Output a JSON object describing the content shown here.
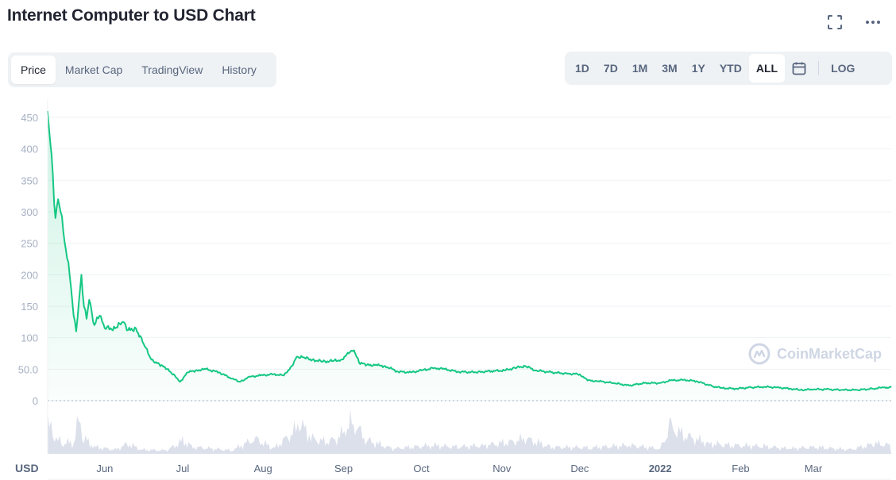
{
  "header": {
    "title": "Internet Computer to USD Chart"
  },
  "icons": {
    "fullscreen": "fullscreen-icon",
    "more": "more-dots-icon",
    "calendar": "calendar-icon"
  },
  "tabs": [
    {
      "label": "Price",
      "active": true
    },
    {
      "label": "Market Cap",
      "active": false
    },
    {
      "label": "TradingView",
      "active": false
    },
    {
      "label": "History",
      "active": false
    }
  ],
  "ranges": [
    {
      "label": "1D",
      "active": false
    },
    {
      "label": "7D",
      "active": false
    },
    {
      "label": "1M",
      "active": false
    },
    {
      "label": "3M",
      "active": false
    },
    {
      "label": "1Y",
      "active": false
    },
    {
      "label": "YTD",
      "active": false
    },
    {
      "label": "ALL",
      "active": true
    }
  ],
  "log_label": "LOG",
  "currency_label": "USD",
  "watermark": "CoinMarketCap",
  "colors": {
    "line": "#16c784",
    "volume": "#cfd6e4",
    "grid": "#eff2f5",
    "accent_bg": "#eff2f5"
  },
  "chart_data": {
    "type": "line",
    "title": "Internet Computer to USD Chart",
    "ylabel": "USD",
    "ylim": [
      0,
      460
    ],
    "y_ticks": [
      0,
      50.0,
      100,
      150,
      200,
      250,
      300,
      350,
      400,
      450
    ],
    "y_tick_labels": [
      "0",
      "50.0",
      "100",
      "150",
      "200",
      "250",
      "300",
      "350",
      "400",
      "450"
    ],
    "x_range": [
      "2021-05-10",
      "2022-03-31"
    ],
    "x_ticks": [
      {
        "label": "Jun",
        "date": "2021-06-01",
        "bold": false
      },
      {
        "label": "Jul",
        "date": "2021-07-01",
        "bold": false
      },
      {
        "label": "Aug",
        "date": "2021-08-01",
        "bold": false
      },
      {
        "label": "Sep",
        "date": "2021-09-01",
        "bold": false
      },
      {
        "label": "Oct",
        "date": "2021-10-01",
        "bold": false
      },
      {
        "label": "Nov",
        "date": "2021-11-01",
        "bold": false
      },
      {
        "label": "Dec",
        "date": "2021-12-01",
        "bold": false
      },
      {
        "label": "2022",
        "date": "2022-01-01",
        "bold": true
      },
      {
        "label": "Feb",
        "date": "2022-02-01",
        "bold": false
      },
      {
        "label": "Mar",
        "date": "2022-03-01",
        "bold": false
      }
    ],
    "grid": true,
    "series": [
      {
        "points": [
          [
            "2021-05-10",
            460
          ],
          [
            "2021-05-11",
            410
          ],
          [
            "2021-05-12",
            360
          ],
          [
            "2021-05-13",
            290
          ],
          [
            "2021-05-14",
            320
          ],
          [
            "2021-05-15",
            300
          ],
          [
            "2021-05-16",
            270
          ],
          [
            "2021-05-17",
            240
          ],
          [
            "2021-05-18",
            220
          ],
          [
            "2021-05-19",
            180
          ],
          [
            "2021-05-20",
            135
          ],
          [
            "2021-05-21",
            110
          ],
          [
            "2021-05-22",
            155
          ],
          [
            "2021-05-23",
            200
          ],
          [
            "2021-05-24",
            150
          ],
          [
            "2021-05-25",
            130
          ],
          [
            "2021-05-26",
            160
          ],
          [
            "2021-05-27",
            140
          ],
          [
            "2021-05-28",
            120
          ],
          [
            "2021-05-30",
            135
          ],
          [
            "2021-06-01",
            115
          ],
          [
            "2021-06-05",
            115
          ],
          [
            "2021-06-08",
            125
          ],
          [
            "2021-06-10",
            112
          ],
          [
            "2021-06-13",
            115
          ],
          [
            "2021-06-16",
            90
          ],
          [
            "2021-06-19",
            65
          ],
          [
            "2021-06-22",
            58
          ],
          [
            "2021-06-25",
            50
          ],
          [
            "2021-06-28",
            40
          ],
          [
            "2021-06-30",
            30
          ],
          [
            "2021-07-03",
            45
          ],
          [
            "2021-07-06",
            48
          ],
          [
            "2021-07-10",
            50
          ],
          [
            "2021-07-15",
            45
          ],
          [
            "2021-07-20",
            35
          ],
          [
            "2021-07-23",
            30
          ],
          [
            "2021-07-27",
            38
          ],
          [
            "2021-07-31",
            40
          ],
          [
            "2021-08-05",
            42
          ],
          [
            "2021-08-09",
            40
          ],
          [
            "2021-08-12",
            55
          ],
          [
            "2021-08-14",
            70
          ],
          [
            "2021-08-17",
            68
          ],
          [
            "2021-08-20",
            65
          ],
          [
            "2021-08-24",
            62
          ],
          [
            "2021-08-28",
            63
          ],
          [
            "2021-08-31",
            65
          ],
          [
            "2021-09-03",
            75
          ],
          [
            "2021-09-05",
            80
          ],
          [
            "2021-09-07",
            60
          ],
          [
            "2021-09-10",
            57
          ],
          [
            "2021-09-14",
            56
          ],
          [
            "2021-09-17",
            55
          ],
          [
            "2021-09-22",
            46
          ],
          [
            "2021-09-27",
            45
          ],
          [
            "2021-10-01",
            48
          ],
          [
            "2021-10-06",
            52
          ],
          [
            "2021-10-10",
            50
          ],
          [
            "2021-10-15",
            46
          ],
          [
            "2021-10-22",
            45
          ],
          [
            "2021-10-28",
            47
          ],
          [
            "2021-11-02",
            48
          ],
          [
            "2021-11-06",
            52
          ],
          [
            "2021-11-10",
            55
          ],
          [
            "2021-11-14",
            48
          ],
          [
            "2021-11-20",
            45
          ],
          [
            "2021-11-26",
            43
          ],
          [
            "2021-12-01",
            42
          ],
          [
            "2021-12-04",
            32
          ],
          [
            "2021-12-08",
            31
          ],
          [
            "2021-12-14",
            28
          ],
          [
            "2021-12-20",
            24
          ],
          [
            "2021-12-26",
            28
          ],
          [
            "2022-01-01",
            28
          ],
          [
            "2022-01-05",
            32
          ],
          [
            "2022-01-10",
            33
          ],
          [
            "2022-01-15",
            31
          ],
          [
            "2022-01-21",
            23
          ],
          [
            "2022-01-25",
            20
          ],
          [
            "2022-01-30",
            19
          ],
          [
            "2022-02-05",
            21
          ],
          [
            "2022-02-10",
            22
          ],
          [
            "2022-02-15",
            21
          ],
          [
            "2022-02-20",
            19
          ],
          [
            "2022-02-24",
            17
          ],
          [
            "2022-03-01",
            18
          ],
          [
            "2022-03-06",
            18
          ],
          [
            "2022-03-12",
            17
          ],
          [
            "2022-03-18",
            17
          ],
          [
            "2022-03-24",
            19
          ],
          [
            "2022-03-28",
            21
          ],
          [
            "2022-03-31",
            21
          ]
        ]
      }
    ],
    "volume_relative": [
      [
        "2021-05-10",
        0.9
      ],
      [
        "2021-05-12",
        0.6
      ],
      [
        "2021-05-14",
        0.4
      ],
      [
        "2021-05-16",
        0.3
      ],
      [
        "2021-05-20",
        0.35
      ],
      [
        "2021-05-22",
        1.0
      ],
      [
        "2021-05-24",
        0.45
      ],
      [
        "2021-05-28",
        0.2
      ],
      [
        "2021-06-05",
        0.12
      ],
      [
        "2021-06-10",
        0.3
      ],
      [
        "2021-06-15",
        0.12
      ],
      [
        "2021-06-25",
        0.1
      ],
      [
        "2021-07-01",
        0.38
      ],
      [
        "2021-07-05",
        0.2
      ],
      [
        "2021-07-20",
        0.1
      ],
      [
        "2021-07-29",
        0.45
      ],
      [
        "2021-08-05",
        0.15
      ],
      [
        "2021-08-13",
        0.65
      ],
      [
        "2021-08-15",
        0.9
      ],
      [
        "2021-08-20",
        0.45
      ],
      [
        "2021-08-25",
        0.35
      ],
      [
        "2021-08-30",
        0.45
      ],
      [
        "2021-09-03",
        0.9
      ],
      [
        "2021-09-06",
        0.8
      ],
      [
        "2021-09-10",
        0.4
      ],
      [
        "2021-09-20",
        0.15
      ],
      [
        "2021-10-05",
        0.25
      ],
      [
        "2021-10-15",
        0.2
      ],
      [
        "2021-10-25",
        0.25
      ],
      [
        "2021-11-05",
        0.35
      ],
      [
        "2021-11-10",
        0.45
      ],
      [
        "2021-11-20",
        0.2
      ],
      [
        "2021-12-05",
        0.18
      ],
      [
        "2021-12-20",
        0.25
      ],
      [
        "2022-01-01",
        0.15
      ],
      [
        "2022-01-05",
        0.8
      ],
      [
        "2022-01-10",
        0.55
      ],
      [
        "2022-01-20",
        0.3
      ],
      [
        "2022-01-28",
        0.25
      ],
      [
        "2022-02-10",
        0.22
      ],
      [
        "2022-02-20",
        0.15
      ],
      [
        "2022-03-01",
        0.2
      ],
      [
        "2022-03-15",
        0.12
      ],
      [
        "2022-03-25",
        0.3
      ],
      [
        "2022-03-31",
        0.25
      ]
    ]
  }
}
